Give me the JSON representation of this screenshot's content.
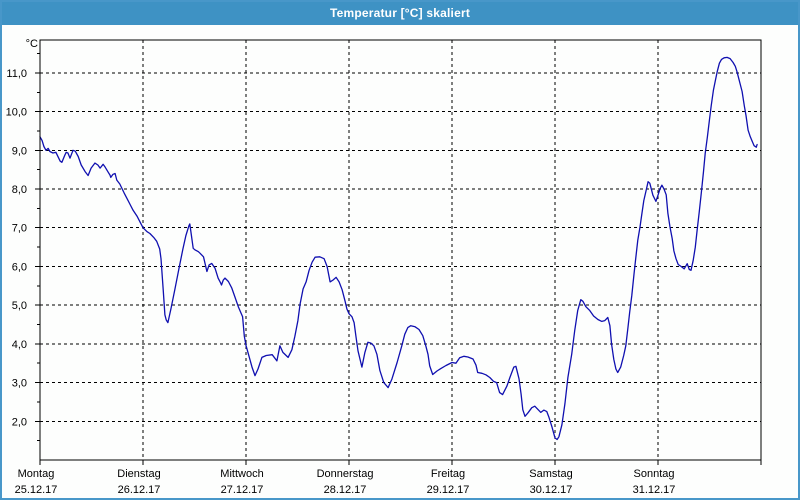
{
  "window": {
    "title": "Temperatur [°C] skaliert",
    "colors": {
      "title_bar": "#3e92c4",
      "border": "#4897c9",
      "background": "#fdfefd"
    }
  },
  "chart_data": {
    "type": "line",
    "title": "Temperatur [°C] skaliert",
    "grid": "dashed",
    "legend": "none",
    "x_axis": {
      "range_hours": [
        0,
        168
      ],
      "days": [
        {
          "name": "Montag",
          "date": "25.12.17"
        },
        {
          "name": "Dienstag",
          "date": "26.12.17"
        },
        {
          "name": "Mittwoch",
          "date": "27.12.17"
        },
        {
          "name": "Donnerstag",
          "date": "28.12.17"
        },
        {
          "name": "Freitag",
          "date": "29.12.17"
        },
        {
          "name": "Samstag",
          "date": "30.12.17"
        },
        {
          "name": "Sonntag",
          "date": "31.12.17"
        }
      ]
    },
    "y_axis": {
      "unit_label": "°C",
      "range": [
        1.0,
        11.85
      ],
      "minor_tick_step": 0.5,
      "ticks": [
        {
          "value": 2,
          "label": "2,0"
        },
        {
          "value": 3,
          "label": "3,0"
        },
        {
          "value": 4,
          "label": "4,0"
        },
        {
          "value": 5,
          "label": "5,0"
        },
        {
          "value": 6,
          "label": "6,0"
        },
        {
          "value": 7,
          "label": "7,0"
        },
        {
          "value": 8,
          "label": "8,0"
        },
        {
          "value": 9,
          "label": "9,0"
        },
        {
          "value": 10,
          "label": "10,0"
        },
        {
          "value": 11,
          "label": "11,0"
        }
      ]
    },
    "series": [
      {
        "name": "Temperatur",
        "color": "#1010b0",
        "points": [
          [
            0,
            9.35
          ],
          [
            0.5,
            9.25
          ],
          [
            0.9,
            9.1
          ],
          [
            1.4,
            9.0
          ],
          [
            1.9,
            9.05
          ],
          [
            2.3,
            8.97
          ],
          [
            3,
            8.93
          ],
          [
            3.7,
            8.95
          ],
          [
            4.7,
            8.72
          ],
          [
            5.1,
            8.69
          ],
          [
            5.8,
            8.88
          ],
          [
            6.1,
            8.95
          ],
          [
            6.5,
            8.93
          ],
          [
            7,
            8.8
          ],
          [
            7.7,
            9.0
          ],
          [
            8.2,
            8.98
          ],
          [
            8.9,
            8.84
          ],
          [
            9.6,
            8.62
          ],
          [
            10.5,
            8.45
          ],
          [
            11.2,
            8.35
          ],
          [
            11.9,
            8.54
          ],
          [
            12.8,
            8.67
          ],
          [
            13.5,
            8.62
          ],
          [
            14,
            8.54
          ],
          [
            14.7,
            8.64
          ],
          [
            15.1,
            8.58
          ],
          [
            15.8,
            8.45
          ],
          [
            16.3,
            8.36
          ],
          [
            16.5,
            8.3
          ],
          [
            17,
            8.38
          ],
          [
            17.5,
            8.4
          ],
          [
            17.9,
            8.23
          ],
          [
            18.6,
            8.13
          ],
          [
            19.6,
            7.9
          ],
          [
            20.3,
            7.75
          ],
          [
            21,
            7.6
          ],
          [
            21.7,
            7.45
          ],
          [
            22.6,
            7.3
          ],
          [
            23.3,
            7.15
          ],
          [
            24,
            7.0
          ],
          [
            24.9,
            6.9
          ],
          [
            25.6,
            6.85
          ],
          [
            26.5,
            6.75
          ],
          [
            27.2,
            6.65
          ],
          [
            27.9,
            6.45
          ],
          [
            28.2,
            6.2
          ],
          [
            28.7,
            5.4
          ],
          [
            29.1,
            4.75
          ],
          [
            29.4,
            4.62
          ],
          [
            29.8,
            4.55
          ],
          [
            30.5,
            4.9
          ],
          [
            31.4,
            5.4
          ],
          [
            32.4,
            5.95
          ],
          [
            33.3,
            6.45
          ],
          [
            34,
            6.8
          ],
          [
            34.7,
            7.05
          ],
          [
            34.9,
            7.1
          ],
          [
            35.7,
            6.47
          ],
          [
            36.1,
            6.43
          ],
          [
            36.9,
            6.38
          ],
          [
            37.3,
            6.34
          ],
          [
            38.1,
            6.25
          ],
          [
            38.9,
            5.87
          ],
          [
            39.4,
            6.04
          ],
          [
            40,
            6.08
          ],
          [
            40.8,
            5.95
          ],
          [
            41.5,
            5.7
          ],
          [
            42.1,
            5.57
          ],
          [
            42.3,
            5.52
          ],
          [
            42.7,
            5.65
          ],
          [
            43.1,
            5.7
          ],
          [
            43.9,
            5.61
          ],
          [
            44.7,
            5.44
          ],
          [
            45.4,
            5.22
          ],
          [
            46.2,
            4.96
          ],
          [
            47.2,
            4.7
          ],
          [
            47.6,
            4.2
          ],
          [
            48,
            3.96
          ],
          [
            48.9,
            3.6
          ],
          [
            49.4,
            3.4
          ],
          [
            50.1,
            3.18
          ],
          [
            50.8,
            3.35
          ],
          [
            51.7,
            3.65
          ],
          [
            52.7,
            3.7
          ],
          [
            54.1,
            3.72
          ],
          [
            55.2,
            3.56
          ],
          [
            55.9,
            3.95
          ],
          [
            56.6,
            3.78
          ],
          [
            57.8,
            3.65
          ],
          [
            58.7,
            3.85
          ],
          [
            59.4,
            4.2
          ],
          [
            60.1,
            4.6
          ],
          [
            60.6,
            5.03
          ],
          [
            61.3,
            5.42
          ],
          [
            62,
            5.6
          ],
          [
            62.7,
            5.9
          ],
          [
            63.4,
            6.11
          ],
          [
            64.1,
            6.24
          ],
          [
            65.2,
            6.25
          ],
          [
            66.2,
            6.2
          ],
          [
            66.9,
            6.0
          ],
          [
            67.6,
            5.6
          ],
          [
            68.3,
            5.65
          ],
          [
            69,
            5.72
          ],
          [
            69.7,
            5.6
          ],
          [
            70.4,
            5.4
          ],
          [
            71.1,
            5.1
          ],
          [
            71.5,
            4.9
          ],
          [
            72,
            4.78
          ],
          [
            72.7,
            4.7
          ],
          [
            73.2,
            4.55
          ],
          [
            73.6,
            4.2
          ],
          [
            74.1,
            3.82
          ],
          [
            75,
            3.4
          ],
          [
            75.7,
            3.78
          ],
          [
            76.4,
            4.04
          ],
          [
            77.1,
            4.02
          ],
          [
            77.8,
            3.95
          ],
          [
            78.5,
            3.73
          ],
          [
            79.2,
            3.31
          ],
          [
            80.1,
            3.0
          ],
          [
            81.1,
            2.87
          ],
          [
            82,
            3.09
          ],
          [
            83.2,
            3.52
          ],
          [
            84.3,
            3.95
          ],
          [
            85,
            4.25
          ],
          [
            85.7,
            4.42
          ],
          [
            86.4,
            4.47
          ],
          [
            87.4,
            4.44
          ],
          [
            88.3,
            4.37
          ],
          [
            89.2,
            4.21
          ],
          [
            89.9,
            3.95
          ],
          [
            90.4,
            3.73
          ],
          [
            90.8,
            3.43
          ],
          [
            91.5,
            3.21
          ],
          [
            92.5,
            3.3
          ],
          [
            93.4,
            3.36
          ],
          [
            94.6,
            3.44
          ],
          [
            96,
            3.52
          ],
          [
            96.9,
            3.5
          ],
          [
            97.8,
            3.64
          ],
          [
            98.8,
            3.68
          ],
          [
            99.7,
            3.66
          ],
          [
            100.9,
            3.61
          ],
          [
            101.6,
            3.45
          ],
          [
            102,
            3.26
          ],
          [
            103,
            3.24
          ],
          [
            103.9,
            3.2
          ],
          [
            104.8,
            3.13
          ],
          [
            105.7,
            3.03
          ],
          [
            106.4,
            3.0
          ],
          [
            107.1,
            2.74
          ],
          [
            107.8,
            2.69
          ],
          [
            108.8,
            2.91
          ],
          [
            109.5,
            3.13
          ],
          [
            110.4,
            3.4
          ],
          [
            110.9,
            3.42
          ],
          [
            111.6,
            3.1
          ],
          [
            112.1,
            2.7
          ],
          [
            112.5,
            2.3
          ],
          [
            113,
            2.13
          ],
          [
            113.7,
            2.22
          ],
          [
            114.6,
            2.35
          ],
          [
            115.3,
            2.39
          ],
          [
            116,
            2.31
          ],
          [
            116.7,
            2.23
          ],
          [
            117.4,
            2.29
          ],
          [
            118.1,
            2.25
          ],
          [
            118.6,
            2.1
          ],
          [
            119.3,
            1.85
          ],
          [
            120,
            1.57
          ],
          [
            120.5,
            1.53
          ],
          [
            120.9,
            1.6
          ],
          [
            121.6,
            1.91
          ],
          [
            122.3,
            2.45
          ],
          [
            123,
            3.13
          ],
          [
            123.9,
            3.73
          ],
          [
            124.6,
            4.34
          ],
          [
            125.3,
            4.86
          ],
          [
            126,
            5.14
          ],
          [
            126.5,
            5.1
          ],
          [
            127.2,
            4.96
          ],
          [
            128.1,
            4.86
          ],
          [
            129,
            4.72
          ],
          [
            130,
            4.63
          ],
          [
            130.9,
            4.58
          ],
          [
            131.6,
            4.6
          ],
          [
            132.3,
            4.68
          ],
          [
            132.8,
            4.47
          ],
          [
            133.2,
            3.99
          ],
          [
            133.7,
            3.6
          ],
          [
            134.2,
            3.35
          ],
          [
            134.6,
            3.26
          ],
          [
            135.3,
            3.4
          ],
          [
            136,
            3.7
          ],
          [
            136.5,
            3.95
          ],
          [
            137,
            4.43
          ],
          [
            137.4,
            4.82
          ],
          [
            137.9,
            5.25
          ],
          [
            138.4,
            5.8
          ],
          [
            138.8,
            6.2
          ],
          [
            139.3,
            6.68
          ],
          [
            139.8,
            7.02
          ],
          [
            140.2,
            7.33
          ],
          [
            140.7,
            7.7
          ],
          [
            141.2,
            7.95
          ],
          [
            141.7,
            8.19
          ],
          [
            142.1,
            8.15
          ],
          [
            142.8,
            7.84
          ],
          [
            143.5,
            7.68
          ],
          [
            144,
            7.84
          ],
          [
            144.5,
            8.01
          ],
          [
            144.9,
            8.1
          ],
          [
            145.4,
            8.0
          ],
          [
            145.9,
            7.85
          ],
          [
            146.3,
            7.37
          ],
          [
            146.8,
            7.02
          ],
          [
            147.3,
            6.72
          ],
          [
            147.7,
            6.4
          ],
          [
            148.2,
            6.2
          ],
          [
            148.7,
            6.05
          ],
          [
            149.4,
            6.0
          ],
          [
            150.1,
            5.94
          ],
          [
            150.8,
            6.07
          ],
          [
            151.3,
            5.92
          ],
          [
            151.7,
            5.9
          ],
          [
            152.2,
            6.16
          ],
          [
            152.7,
            6.5
          ],
          [
            153.1,
            6.93
          ],
          [
            153.6,
            7.4
          ],
          [
            154.1,
            7.9
          ],
          [
            154.6,
            8.45
          ],
          [
            155,
            8.92
          ],
          [
            155.5,
            9.35
          ],
          [
            156,
            9.8
          ],
          [
            156.4,
            10.15
          ],
          [
            156.9,
            10.55
          ],
          [
            157.4,
            10.82
          ],
          [
            157.8,
            11.03
          ],
          [
            158.3,
            11.25
          ],
          [
            158.8,
            11.35
          ],
          [
            159.4,
            11.39
          ],
          [
            160.1,
            11.4
          ],
          [
            160.8,
            11.37
          ],
          [
            161.5,
            11.27
          ],
          [
            162,
            11.17
          ],
          [
            162.4,
            11.03
          ],
          [
            163.1,
            10.73
          ],
          [
            163.6,
            10.52
          ],
          [
            164.1,
            10.15
          ],
          [
            164.5,
            9.9
          ],
          [
            165,
            9.52
          ],
          [
            165.5,
            9.35
          ],
          [
            166,
            9.22
          ],
          [
            166.4,
            9.12
          ],
          [
            166.9,
            9.08
          ],
          [
            167.1,
            9.15
          ]
        ]
      }
    ]
  }
}
